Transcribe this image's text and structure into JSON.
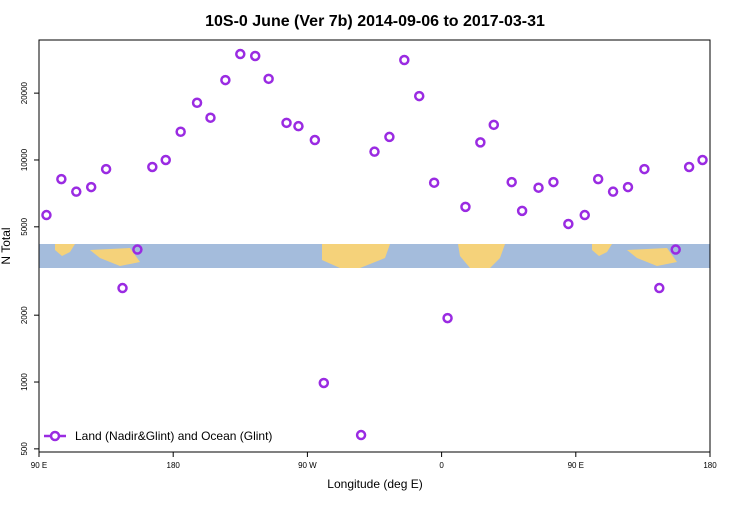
{
  "chart_data": {
    "type": "scatter",
    "title": "10S-0 June (Ver 7b)   2014-09-06 to 2017-03-31",
    "x_label": "Longitude (deg E)",
    "y_label": "N Total",
    "log_y": true,
    "legend_position": "bottom-left",
    "xlim": [
      90,
      540
    ],
    "xticks": [
      {
        "value": 90,
        "label": "90 E"
      },
      180,
      {
        "value": 270,
        "label": "90 W"
      },
      {
        "value": 360,
        "label": "0"
      },
      {
        "value": 450,
        "label": "90 E"
      },
      {
        "value": 540,
        "label": "180"
      }
    ],
    "ylim": [
      484,
      34700
    ],
    "yticks": [
      500,
      1000,
      2000,
      5000,
      10000,
      20000
    ],
    "series": [
      {
        "name": "Land (Nadir&Glint) and Ocean (Glint)",
        "color": "#9a2be2",
        "x": [
          95,
          105,
          115,
          125,
          135,
          146,
          156,
          166,
          175,
          185,
          196,
          205,
          215,
          225,
          235,
          244,
          256,
          264,
          275,
          281,
          306,
          315,
          325,
          335,
          345,
          355,
          364,
          376,
          386,
          395,
          407,
          414,
          425,
          435,
          445,
          456,
          465,
          475,
          485,
          496,
          506,
          517,
          526,
          535
        ],
        "values": [
          5650,
          8200,
          7200,
          7550,
          9100,
          2650,
          3950,
          9300,
          10000,
          13400,
          18100,
          15500,
          22900,
          30000,
          29400,
          23200,
          14700,
          14200,
          12300,
          990,
          577,
          10900,
          12700,
          28200,
          19400,
          7900,
          1940,
          6150,
          12000,
          14400,
          7950,
          5900,
          7500,
          7950,
          5150,
          5650,
          8200,
          7200,
          7550,
          9100,
          2650,
          3950,
          9300,
          10000
        ]
      }
    ]
  }
}
